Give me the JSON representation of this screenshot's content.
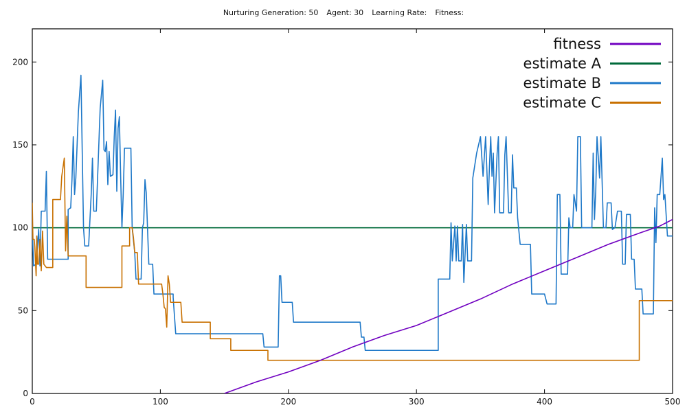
{
  "header": {
    "generation": "Nurturing Generation: 50",
    "agent": "Agent: 30",
    "learning_rate": "Learning Rate:",
    "fitness": "Fitness:"
  },
  "chart_data": {
    "type": "line",
    "xlim": [
      0,
      500
    ],
    "ylim": [
      0,
      220
    ],
    "xticks": [
      0,
      100,
      200,
      300,
      400,
      500
    ],
    "yticks": [
      0,
      50,
      100,
      150,
      200
    ],
    "grid": false,
    "legend_position": "top-right",
    "series": [
      {
        "name": "fitness",
        "color": "#7000c0",
        "points": [
          [
            150,
            0
          ],
          [
            175,
            7
          ],
          [
            200,
            13
          ],
          [
            225,
            20
          ],
          [
            250,
            28
          ],
          [
            275,
            35
          ],
          [
            300,
            41
          ],
          [
            325,
            49
          ],
          [
            350,
            57
          ],
          [
            375,
            66
          ],
          [
            400,
            74
          ],
          [
            425,
            82
          ],
          [
            450,
            90
          ],
          [
            475,
            97
          ],
          [
            490,
            101
          ],
          [
            500,
            105
          ]
        ]
      },
      {
        "name": "estimate A",
        "color": "#006a3a",
        "points": [
          [
            0,
            100
          ],
          [
            500,
            100
          ]
        ]
      },
      {
        "name": "estimate B",
        "color": "#1e78c8",
        "points": [
          [
            0,
            100
          ],
          [
            1,
            77
          ],
          [
            3,
            78
          ],
          [
            5,
            99
          ],
          [
            6,
            77
          ],
          [
            7,
            110
          ],
          [
            10,
            110
          ],
          [
            11,
            134
          ],
          [
            12,
            81
          ],
          [
            14,
            81
          ],
          [
            28,
            81
          ],
          [
            28,
            111
          ],
          [
            30,
            112
          ],
          [
            31,
            129
          ],
          [
            32,
            155
          ],
          [
            33,
            120
          ],
          [
            34,
            130
          ],
          [
            36,
            170
          ],
          [
            38,
            192
          ],
          [
            40,
            100
          ],
          [
            41,
            89
          ],
          [
            44,
            89
          ],
          [
            46,
            120
          ],
          [
            47,
            142
          ],
          [
            48,
            110
          ],
          [
            50,
            110
          ],
          [
            51,
            130
          ],
          [
            53,
            172
          ],
          [
            55,
            189
          ],
          [
            56,
            147
          ],
          [
            57,
            146
          ],
          [
            58,
            152
          ],
          [
            59,
            126
          ],
          [
            60,
            146
          ],
          [
            61,
            131
          ],
          [
            63,
            132
          ],
          [
            64,
            155
          ],
          [
            65,
            171
          ],
          [
            66,
            122
          ],
          [
            67,
            160
          ],
          [
            68,
            167
          ],
          [
            69,
            131
          ],
          [
            70,
            100
          ],
          [
            71,
            120
          ],
          [
            72,
            148
          ],
          [
            77,
            148
          ],
          [
            78,
            100
          ],
          [
            80,
            85
          ],
          [
            81,
            69
          ],
          [
            85,
            69
          ],
          [
            86,
            100
          ],
          [
            87,
            103
          ],
          [
            88,
            129
          ],
          [
            89,
            121
          ],
          [
            91,
            78
          ],
          [
            94,
            78
          ],
          [
            95,
            60
          ],
          [
            110,
            60
          ],
          [
            110,
            58
          ],
          [
            112,
            36
          ],
          [
            180,
            36
          ],
          [
            181,
            28
          ],
          [
            192,
            28
          ],
          [
            193,
            71
          ],
          [
            194,
            71
          ],
          [
            195,
            55
          ],
          [
            203,
            55
          ],
          [
            204,
            43
          ],
          [
            256,
            43
          ],
          [
            257,
            34
          ],
          [
            259,
            34
          ],
          [
            260,
            26
          ],
          [
            317,
            26
          ],
          [
            317,
            69
          ],
          [
            326,
            69
          ],
          [
            327,
            103
          ],
          [
            328,
            80
          ],
          [
            330,
            101
          ],
          [
            331,
            80
          ],
          [
            332,
            101
          ],
          [
            333,
            80
          ],
          [
            335,
            80
          ],
          [
            336,
            102
          ],
          [
            337,
            67
          ],
          [
            339,
            102
          ],
          [
            340,
            80
          ],
          [
            343,
            80
          ],
          [
            344,
            130
          ],
          [
            347,
            145
          ],
          [
            350,
            155
          ],
          [
            352,
            131
          ],
          [
            354,
            155
          ],
          [
            356,
            114
          ],
          [
            357,
            137
          ],
          [
            358,
            155
          ],
          [
            359,
            131
          ],
          [
            360,
            145
          ],
          [
            361,
            109
          ],
          [
            363,
            145
          ],
          [
            364,
            155
          ],
          [
            365,
            109
          ],
          [
            368,
            109
          ],
          [
            369,
            144
          ],
          [
            370,
            155
          ],
          [
            372,
            109
          ],
          [
            374,
            109
          ],
          [
            375,
            144
          ],
          [
            376,
            124
          ],
          [
            378,
            124
          ],
          [
            379,
            106
          ],
          [
            381,
            90
          ],
          [
            389,
            90
          ],
          [
            390,
            60
          ],
          [
            400,
            60
          ],
          [
            402,
            54
          ],
          [
            409,
            54
          ],
          [
            410,
            120
          ],
          [
            412,
            120
          ],
          [
            413,
            72
          ],
          [
            418,
            72
          ],
          [
            419,
            106
          ],
          [
            420,
            100
          ],
          [
            422,
            100
          ],
          [
            423,
            120
          ],
          [
            425,
            110
          ],
          [
            426,
            155
          ],
          [
            428,
            155
          ],
          [
            429,
            100
          ],
          [
            437,
            100
          ],
          [
            438,
            145
          ],
          [
            439,
            105
          ],
          [
            440,
            122
          ],
          [
            441,
            155
          ],
          [
            443,
            130
          ],
          [
            444,
            155
          ],
          [
            446,
            100
          ],
          [
            448,
            100
          ],
          [
            449,
            115
          ],
          [
            452,
            115
          ],
          [
            453,
            99
          ],
          [
            455,
            100
          ],
          [
            457,
            110
          ],
          [
            460,
            110
          ],
          [
            461,
            78
          ],
          [
            463,
            78
          ],
          [
            464,
            108
          ],
          [
            467,
            108
          ],
          [
            468,
            81
          ],
          [
            470,
            81
          ],
          [
            471,
            63
          ],
          [
            476,
            63
          ],
          [
            477,
            48
          ],
          [
            485,
            48
          ],
          [
            486,
            112
          ],
          [
            487,
            91
          ],
          [
            488,
            120
          ],
          [
            490,
            120
          ],
          [
            492,
            142
          ],
          [
            493,
            117
          ],
          [
            494,
            120
          ],
          [
            496,
            95
          ],
          [
            500,
            95
          ]
        ]
      },
      {
        "name": "estimate C",
        "color": "#c87000",
        "points": [
          [
            0,
            115
          ],
          [
            0.5,
            93
          ],
          [
            1.5,
            93
          ],
          [
            2,
            88
          ],
          [
            3,
            71
          ],
          [
            3.5,
            95
          ],
          [
            4,
            78
          ],
          [
            5,
            78
          ],
          [
            6,
            93
          ],
          [
            7,
            74
          ],
          [
            8,
            98
          ],
          [
            9,
            78
          ],
          [
            11,
            76
          ],
          [
            16,
            76
          ],
          [
            16,
            117
          ],
          [
            22,
            117
          ],
          [
            23,
            131
          ],
          [
            25,
            142
          ],
          [
            26,
            86
          ],
          [
            27,
            107
          ],
          [
            28,
            83
          ],
          [
            42,
            83
          ],
          [
            42,
            64
          ],
          [
            70,
            64
          ],
          [
            70,
            89
          ],
          [
            76,
            89
          ],
          [
            76,
            100
          ],
          [
            78,
            100
          ],
          [
            79,
            94
          ],
          [
            80,
            85
          ],
          [
            82,
            85
          ],
          [
            83,
            66
          ],
          [
            101,
            66
          ],
          [
            102,
            60
          ],
          [
            103,
            52
          ],
          [
            104,
            51
          ],
          [
            105,
            40
          ],
          [
            106,
            71
          ],
          [
            107,
            66
          ],
          [
            108,
            55
          ],
          [
            116,
            55
          ],
          [
            117,
            43
          ],
          [
            139,
            43
          ],
          [
            139,
            33
          ],
          [
            155,
            33
          ],
          [
            155,
            26
          ],
          [
            184,
            26
          ],
          [
            184,
            20
          ],
          [
            474,
            20
          ],
          [
            474,
            56
          ],
          [
            500,
            56
          ]
        ]
      }
    ]
  }
}
